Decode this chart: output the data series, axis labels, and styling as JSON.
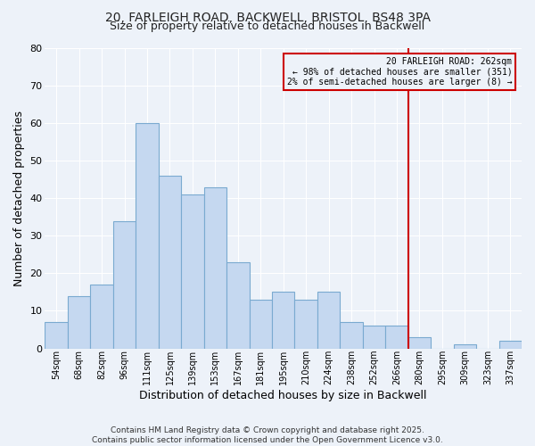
{
  "title1": "20, FARLEIGH ROAD, BACKWELL, BRISTOL, BS48 3PA",
  "title2": "Size of property relative to detached houses in Backwell",
  "xlabel": "Distribution of detached houses by size in Backwell",
  "ylabel": "Number of detached properties",
  "bar_labels": [
    "54sqm",
    "68sqm",
    "82sqm",
    "96sqm",
    "111sqm",
    "125sqm",
    "139sqm",
    "153sqm",
    "167sqm",
    "181sqm",
    "195sqm",
    "210sqm",
    "224sqm",
    "238sqm",
    "252sqm",
    "266sqm",
    "280sqm",
    "295sqm",
    "309sqm",
    "323sqm",
    "337sqm"
  ],
  "bar_heights": [
    7,
    14,
    17,
    34,
    60,
    46,
    41,
    43,
    23,
    13,
    15,
    13,
    15,
    7,
    6,
    6,
    3,
    0,
    1,
    0,
    2
  ],
  "bar_color": "#c5d8f0",
  "bar_edge_color": "#7aaad0",
  "vline_color": "#cc0000",
  "annotation_title": "20 FARLEIGH ROAD: 262sqm",
  "annotation_line1": "← 98% of detached houses are smaller (351)",
  "annotation_line2": "2% of semi-detached houses are larger (8) →",
  "annotation_box_edge_color": "#cc0000",
  "ylim": [
    0,
    80
  ],
  "yticks": [
    0,
    10,
    20,
    30,
    40,
    50,
    60,
    70,
    80
  ],
  "footnote1": "Contains HM Land Registry data © Crown copyright and database right 2025.",
  "footnote2": "Contains public sector information licensed under the Open Government Licence v3.0.",
  "bg_color": "#edf2f9",
  "grid_color": "#ffffff",
  "text_color": "#222222"
}
